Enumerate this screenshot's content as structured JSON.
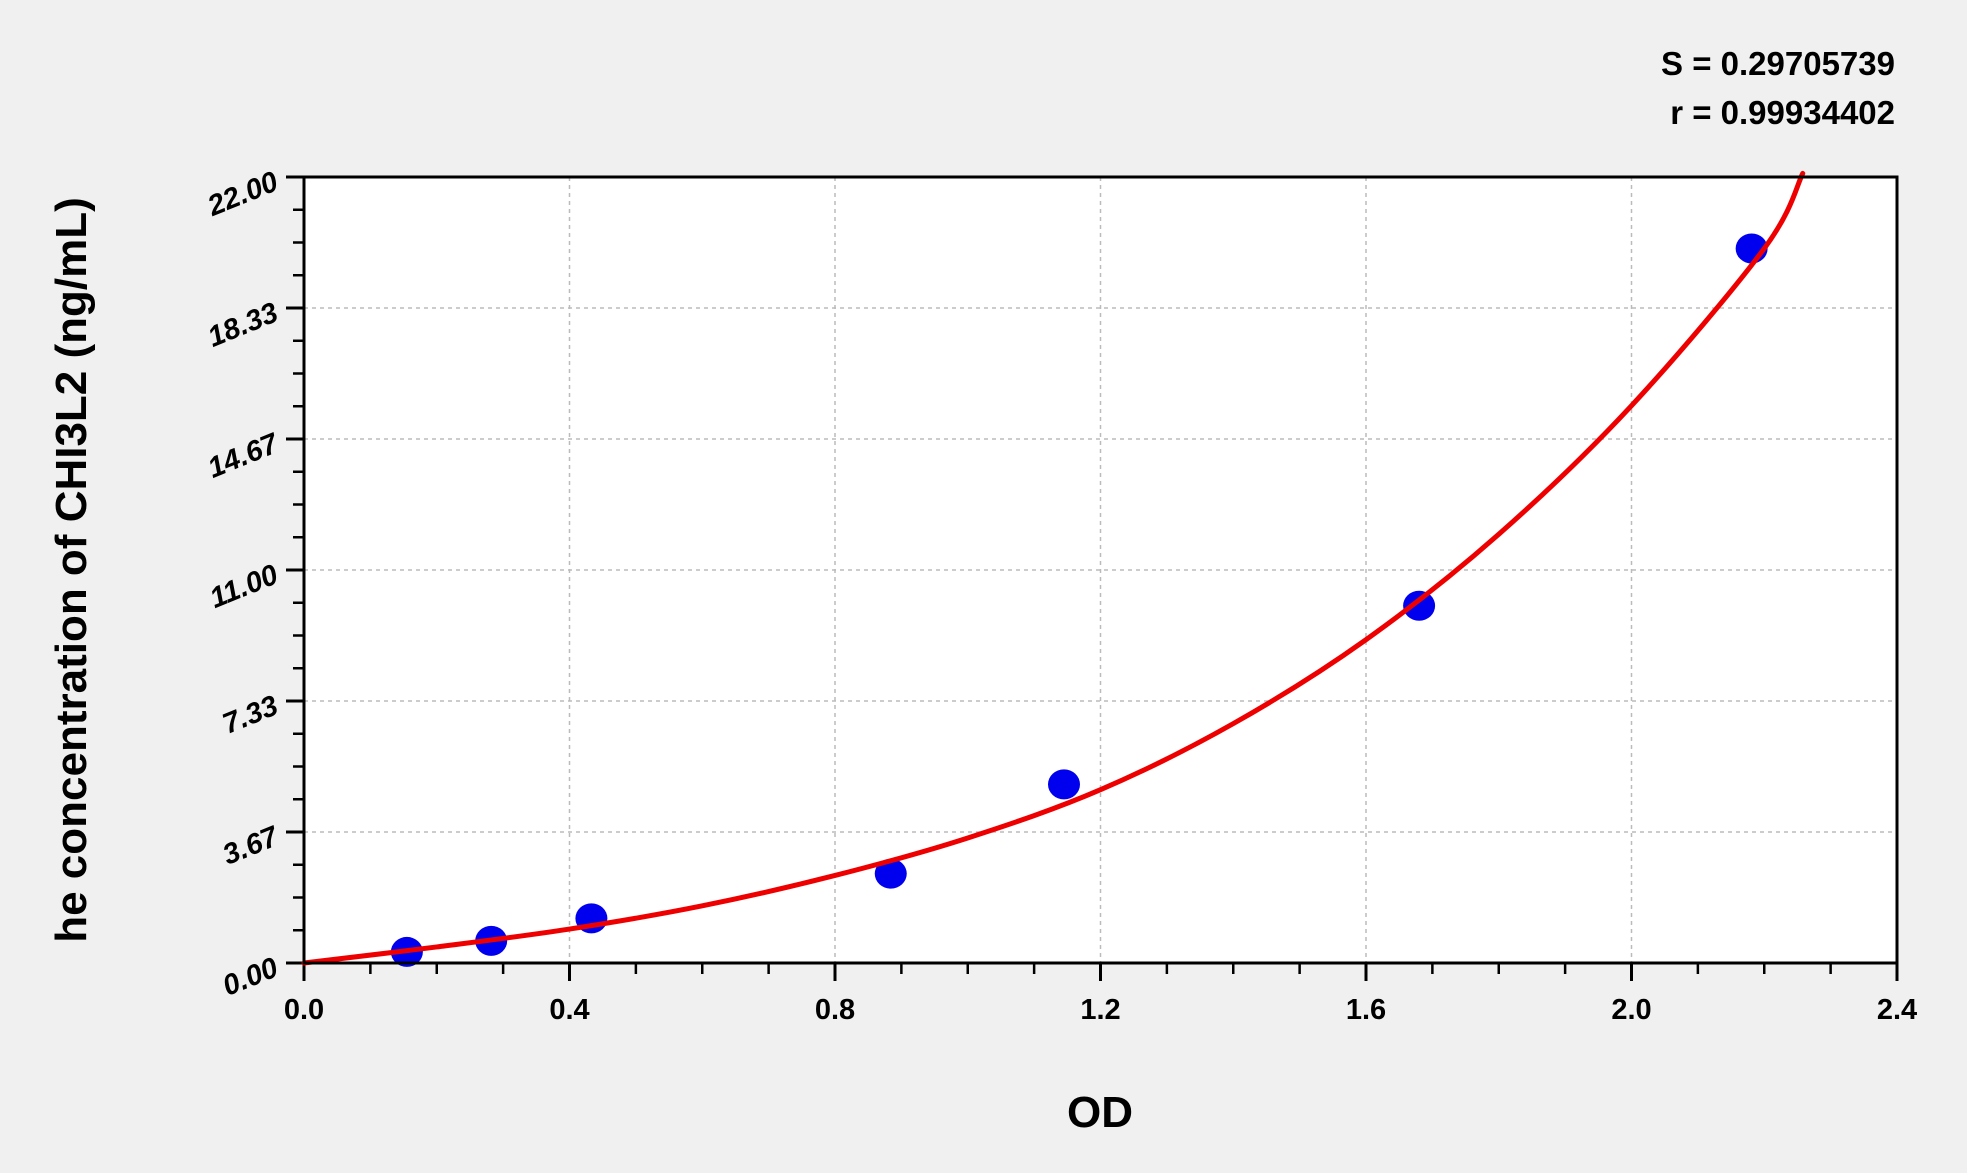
{
  "chart_data": {
    "type": "scatter",
    "xlabel": "OD",
    "ylabel": "he concentration of CHI3L2 (ng/mL)",
    "xlim": [
      0,
      2.4
    ],
    "ylim": [
      0,
      22
    ],
    "x_ticks": [
      "0.0",
      "0.4",
      "0.8",
      "1.2",
      "1.6",
      "2.0",
      "2.4"
    ],
    "y_ticks": [
      "0.00",
      "3.67",
      "7.33",
      "11.00",
      "14.67",
      "18.33",
      "22.00"
    ],
    "grid": true,
    "annotations": [
      "S = 0.29705739",
      "r = 0.99934402"
    ],
    "points": {
      "x": [
        0.155,
        0.282,
        0.433,
        0.884,
        1.145,
        1.68,
        2.181
      ],
      "y": [
        0.31,
        0.62,
        1.25,
        2.5,
        5,
        10,
        20
      ],
      "color": "#0000ee"
    },
    "fit_curve": {
      "x": [
        0.0,
        0.2,
        0.4,
        0.6,
        0.8,
        1.0,
        1.2,
        1.4,
        1.6,
        1.8,
        2.0,
        2.2,
        2.258
      ],
      "y": [
        0.0,
        0.45,
        0.95,
        1.6,
        2.45,
        3.5,
        4.85,
        6.7,
        9.05,
        12.0,
        15.6,
        20.0,
        22.1
      ],
      "color": "#ee0000"
    }
  }
}
